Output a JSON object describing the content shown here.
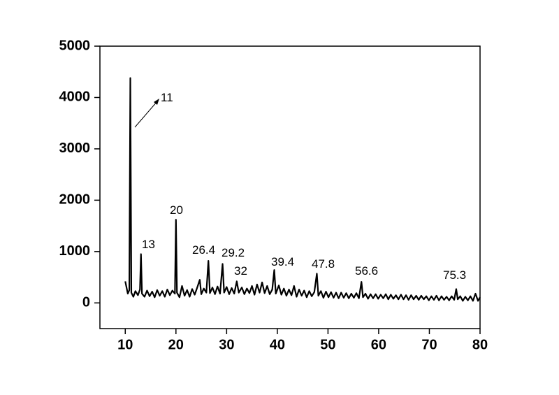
{
  "chart_data": {
    "type": "line",
    "x": [
      10,
      10.5,
      10.8,
      11,
      11.2,
      11.6,
      12,
      12.5,
      12.9,
      13.1,
      13.3,
      13.8,
      14.3,
      14.8,
      15.3,
      15.8,
      16.3,
      16.8,
      17.3,
      17.8,
      18.3,
      18.8,
      19.3,
      19.8,
      20,
      20.2,
      20.7,
      21.2,
      21.7,
      22.2,
      22.7,
      23.2,
      23.7,
      24.2,
      24.7,
      25,
      25.5,
      26,
      26.4,
      26.7,
      27.2,
      27.7,
      28.2,
      28.7,
      29.2,
      29.5,
      30,
      30.5,
      31,
      31.5,
      32,
      32.4,
      33,
      33.5,
      34,
      34.5,
      35,
      35.5,
      36,
      36.5,
      37,
      37.5,
      38,
      38.5,
      39,
      39.4,
      39.7,
      40.3,
      40.8,
      41.3,
      41.8,
      42.3,
      42.8,
      43.3,
      43.8,
      44.3,
      44.8,
      45.3,
      45.8,
      46.3,
      46.8,
      47.3,
      47.8,
      48.1,
      48.6,
      49.1,
      49.6,
      50.1,
      50.6,
      51.1,
      51.6,
      52.1,
      52.6,
      53.1,
      53.6,
      54.1,
      54.6,
      55.1,
      55.6,
      56.1,
      56.6,
      56.9,
      57.4,
      57.9,
      58.4,
      58.9,
      59.4,
      59.9,
      60.4,
      60.9,
      61.4,
      61.9,
      62.4,
      62.9,
      63.4,
      63.9,
      64.4,
      64.9,
      65.4,
      65.9,
      66.4,
      66.9,
      67.4,
      67.9,
      68.4,
      68.9,
      69.4,
      69.9,
      70.4,
      70.9,
      71.4,
      71.9,
      72.4,
      72.9,
      73.4,
      73.9,
      74.4,
      74.9,
      75.3,
      75.6,
      76.1,
      76.6,
      77.1,
      77.6,
      78.1,
      78.6,
      79.1,
      79.6,
      80
    ],
    "series": [
      {
        "color": "#000000",
        "values": [
          420,
          180,
          250,
          4380,
          200,
          120,
          230,
          150,
          260,
          950,
          180,
          120,
          240,
          130,
          220,
          110,
          250,
          140,
          230,
          120,
          260,
          150,
          240,
          180,
          1620,
          200,
          110,
          330,
          140,
          250,
          120,
          270,
          160,
          300,
          450,
          170,
          280,
          200,
          820,
          190,
          300,
          170,
          320,
          180,
          760,
          200,
          310,
          170,
          290,
          180,
          420,
          200,
          300,
          170,
          280,
          190,
          330,
          160,
          360,
          200,
          400,
          190,
          330,
          170,
          260,
          640,
          180,
          340,
          160,
          280,
          140,
          260,
          150,
          330,
          120,
          260,
          140,
          240,
          110,
          230,
          130,
          210,
          570,
          140,
          230,
          100,
          220,
          110,
          210,
          100,
          200,
          90,
          200,
          100,
          190,
          90,
          180,
          100,
          190,
          90,
          410,
          110,
          180,
          80,
          170,
          90,
          170,
          80,
          160,
          90,
          170,
          70,
          160,
          80,
          150,
          70,
          160,
          70,
          150,
          60,
          150,
          70,
          140,
          60,
          140,
          70,
          130,
          50,
          130,
          60,
          140,
          50,
          130,
          60,
          120,
          50,
          130,
          60,
          270,
          70,
          130,
          40,
          120,
          50,
          130,
          40,
          180,
          40,
          110
        ]
      }
    ],
    "xlim": [
      5,
      80
    ],
    "xticks": [
      10,
      20,
      30,
      40,
      50,
      60,
      70,
      80
    ],
    "ylim": [
      -500,
      5000
    ],
    "yticks": [
      0,
      1000,
      2000,
      3000,
      4000,
      5000
    ],
    "annotations": [
      "11",
      "13",
      "20",
      "26.4",
      "29.2",
      "32",
      "39.4",
      "47.8",
      "56.6",
      "75.3"
    ]
  }
}
